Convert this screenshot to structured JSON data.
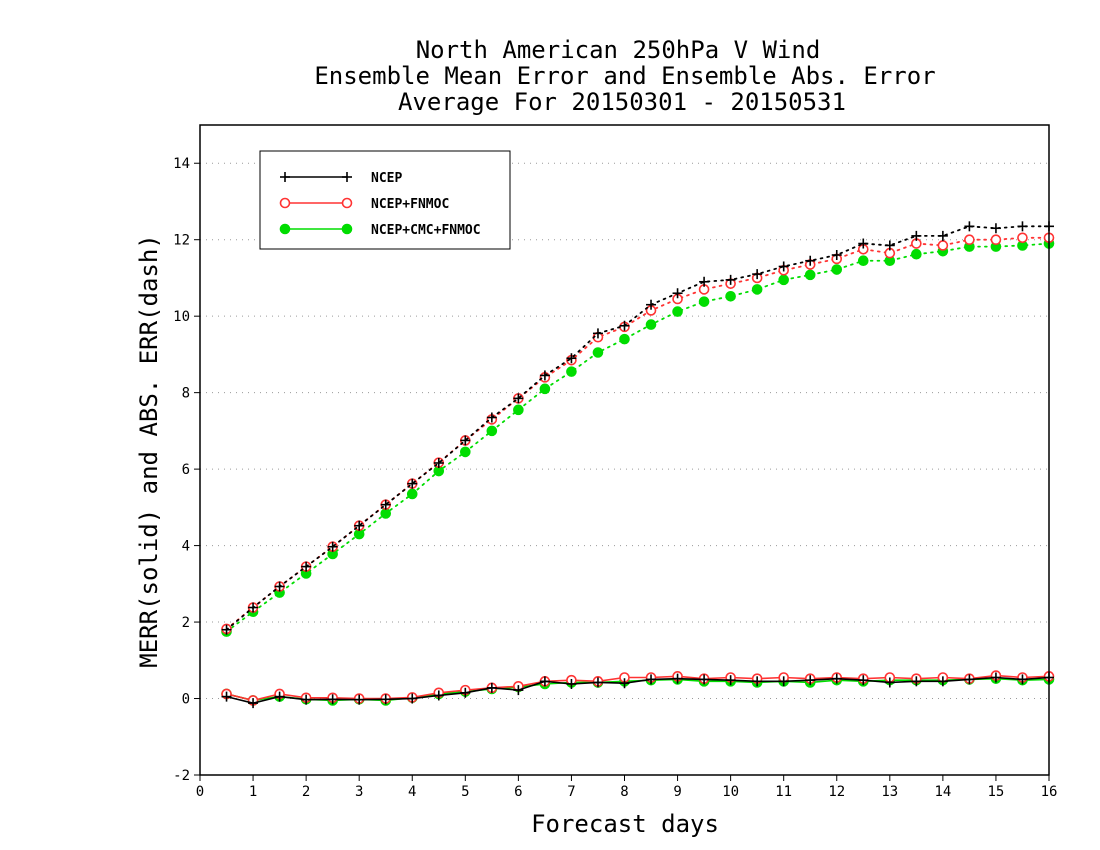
{
  "chart_data": {
    "type": "line",
    "title": [
      "North American 250hPa V Wind",
      "Ensemble Mean Error and Ensemble Abs. Error",
      "Average For 20150301 - 20150531"
    ],
    "xlabel": "Forecast days",
    "ylabel": "MERR(solid) and ABS. ERR(dash)",
    "xlim": [
      0,
      16
    ],
    "ylim": [
      -2,
      15
    ],
    "xticks": [
      0,
      1,
      2,
      3,
      4,
      5,
      6,
      7,
      8,
      9,
      10,
      11,
      12,
      13,
      14,
      15,
      16
    ],
    "yticks": [
      -2,
      0,
      2,
      4,
      6,
      8,
      10,
      12,
      14
    ],
    "grid": true,
    "legend_position": "top-left",
    "x": [
      0.5,
      1,
      1.5,
      2,
      2.5,
      3,
      3.5,
      4,
      4.5,
      5,
      5.5,
      6,
      6.5,
      7,
      7.5,
      8,
      8.5,
      9,
      9.5,
      10,
      10.5,
      11,
      11.5,
      12,
      12.5,
      13,
      13.5,
      14,
      14.5,
      15,
      15.5,
      16
    ],
    "series": [
      {
        "name": "NCEP",
        "color": "#000000",
        "marker": "plus",
        "abs_error": [
          1.8,
          2.38,
          2.93,
          3.45,
          3.97,
          4.52,
          5.07,
          5.62,
          6.16,
          6.75,
          7.35,
          7.85,
          8.45,
          8.9,
          9.55,
          9.75,
          10.3,
          10.6,
          10.9,
          10.95,
          11.1,
          11.3,
          11.45,
          11.6,
          11.9,
          11.85,
          12.1,
          12.1,
          12.35,
          12.3,
          12.35,
          12.35
        ],
        "mean_error": [
          0.05,
          -0.12,
          0.05,
          -0.03,
          -0.02,
          -0.03,
          -0.02,
          0.0,
          0.08,
          0.15,
          0.28,
          0.22,
          0.45,
          0.38,
          0.42,
          0.4,
          0.5,
          0.52,
          0.5,
          0.48,
          0.45,
          0.45,
          0.48,
          0.52,
          0.48,
          0.42,
          0.45,
          0.45,
          0.5,
          0.55,
          0.5,
          0.55
        ]
      },
      {
        "name": "NCEP+FNMOC",
        "color": "#ff3333",
        "marker": "open-circle",
        "abs_error": [
          1.82,
          2.38,
          2.93,
          3.45,
          3.97,
          4.52,
          5.07,
          5.62,
          6.17,
          6.75,
          7.3,
          7.85,
          8.4,
          8.85,
          9.45,
          9.72,
          10.15,
          10.45,
          10.7,
          10.85,
          11.0,
          11.2,
          11.35,
          11.5,
          11.75,
          11.65,
          11.9,
          11.85,
          12.0,
          12.0,
          12.05,
          12.05
        ],
        "mean_error": [
          0.12,
          -0.05,
          0.12,
          0.02,
          0.02,
          0.0,
          0.0,
          0.03,
          0.15,
          0.22,
          0.28,
          0.32,
          0.45,
          0.48,
          0.45,
          0.55,
          0.55,
          0.58,
          0.52,
          0.55,
          0.52,
          0.55,
          0.52,
          0.55,
          0.52,
          0.55,
          0.52,
          0.55,
          0.52,
          0.6,
          0.55,
          0.58
        ]
      },
      {
        "name": "NCEP+CMC+FNMOC",
        "color": "#00dd00",
        "marker": "filled-circle",
        "abs_error": [
          1.75,
          2.27,
          2.77,
          3.27,
          3.78,
          4.3,
          4.84,
          5.35,
          5.95,
          6.45,
          7.0,
          7.55,
          8.1,
          8.55,
          9.05,
          9.4,
          9.78,
          10.12,
          10.38,
          10.52,
          10.7,
          10.95,
          11.08,
          11.22,
          11.45,
          11.45,
          11.62,
          11.7,
          11.82,
          11.82,
          11.85,
          11.9
        ],
        "mean_error": [
          0.12,
          -0.05,
          0.05,
          -0.02,
          -0.05,
          -0.02,
          -0.05,
          0.02,
          0.12,
          0.18,
          0.25,
          0.3,
          0.38,
          0.42,
          0.42,
          0.45,
          0.48,
          0.5,
          0.45,
          0.45,
          0.42,
          0.45,
          0.42,
          0.48,
          0.45,
          0.48,
          0.48,
          0.48,
          0.5,
          0.52,
          0.48,
          0.5
        ]
      }
    ]
  }
}
